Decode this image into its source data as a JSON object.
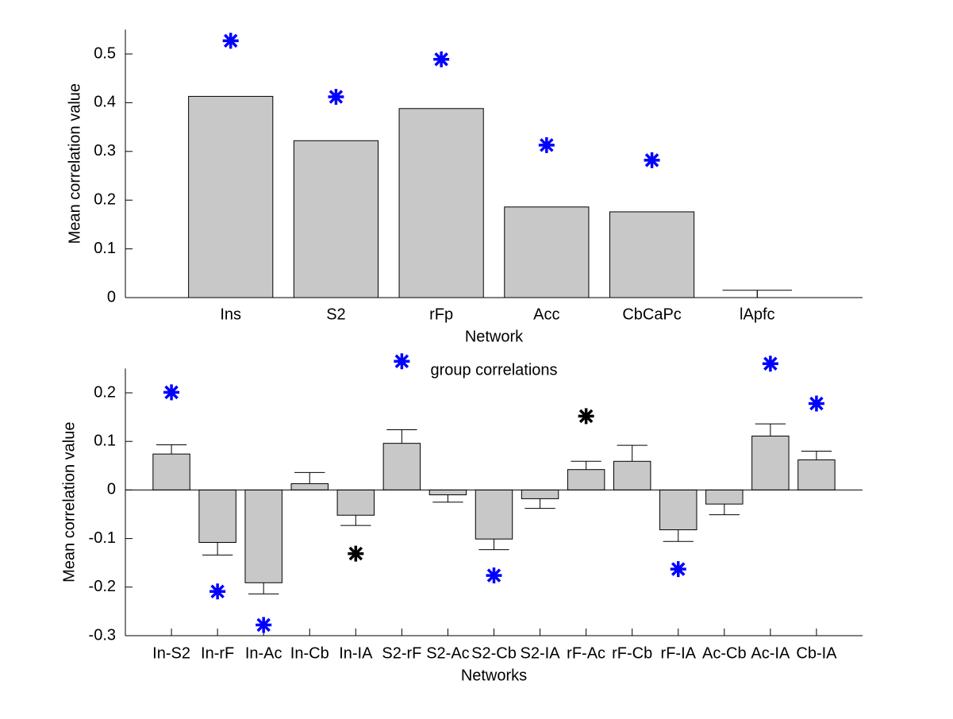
{
  "chart_data": [
    {
      "type": "bar",
      "xlabel": "Network",
      "ylabel": "Mean correlation value",
      "categories": [
        "Ins",
        "S2",
        "rFp",
        "Acc",
        "CbCaPc",
        "lApfc"
      ],
      "values": [
        0.413,
        0.322,
        0.388,
        0.186,
        0.176,
        0
      ],
      "errors": [
        null,
        null,
        null,
        null,
        null,
        0.015
      ],
      "color": "#c8c8c8",
      "star_values": [
        0.527,
        0.412,
        0.489,
        0.313,
        0.282,
        null
      ],
      "star_colors": [
        "#0000ff",
        "#0000ff",
        "#0000ff",
        "#0000ff",
        "#0000ff",
        null
      ],
      "ylim": [
        0,
        0.55
      ],
      "yticks": [
        0,
        0.1,
        0.2,
        0.3,
        0.4,
        0.5
      ]
    },
    {
      "type": "bar",
      "title": "group correlations",
      "xlabel": "Networks",
      "ylabel": "Mean correlation value",
      "categories": [
        "In-S2",
        "In-rF",
        "In-Ac",
        "In-Cb",
        "In-IA",
        "S2-rF",
        "S2-Ac",
        "S2-Cb",
        "S2-IA",
        "rF-Ac",
        "rF-Cb",
        "rF-IA",
        "Ac-Cb",
        "Ac-IA",
        "Cb-IA"
      ],
      "values": [
        0.074,
        -0.108,
        -0.191,
        0.013,
        -0.052,
        0.096,
        -0.01,
        -0.101,
        -0.018,
        0.042,
        0.059,
        -0.082,
        -0.029,
        0.111,
        0.062
      ],
      "errors": [
        0.019,
        0.026,
        0.023,
        0.023,
        0.021,
        0.028,
        0.015,
        0.022,
        0.02,
        0.017,
        0.033,
        0.024,
        0.022,
        0.025,
        0.018
      ],
      "color": "#c8c8c8",
      "star_values": [
        0.201,
        -0.209,
        -0.278,
        null,
        -0.131,
        0.265,
        null,
        -0.176,
        null,
        0.152,
        null,
        -0.163,
        null,
        0.26,
        0.178
      ],
      "star_colors": [
        "#0000ff",
        "#0000ff",
        "#0000ff",
        null,
        "#000000",
        "#0000ff",
        null,
        "#0000ff",
        null,
        "#000000",
        null,
        "#0000ff",
        null,
        "#0000ff",
        "#0000ff"
      ],
      "ylim": [
        -0.3,
        0.25
      ],
      "yticks": [
        -0.3,
        -0.2,
        -0.1,
        0,
        0.1,
        0.2
      ]
    }
  ]
}
